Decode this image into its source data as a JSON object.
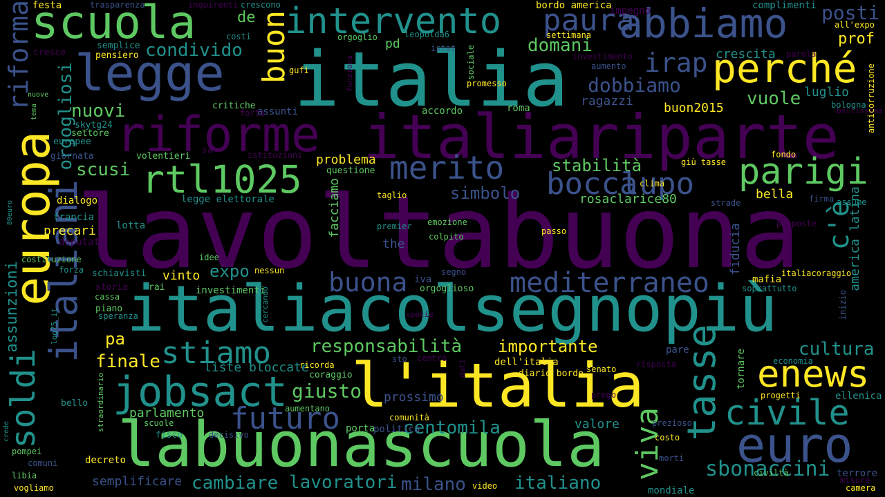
{
  "palette": {
    "background": "#000000",
    "colors": [
      "#440154",
      "#3b528b",
      "#21918c",
      "#5ec962",
      "#fde725"
    ]
  },
  "words": [
    "lavoltabuona",
    "italiacolsegnopiù",
    "italiariparte",
    "italia",
    "labuonascuola",
    "l'italia",
    "riforme",
    "legge",
    "europa",
    "scuola",
    "abbiamo",
    "perché",
    "intervento",
    "italiani",
    "euro",
    "merito",
    "jobsact",
    "rtl1025",
    "tasse",
    "parigi",
    "enews",
    "civile",
    "bocca",
    "lupo",
    "soldi",
    "futuro",
    "mediterraneo",
    "stiamo",
    "buon",
    "riforma",
    "buona",
    "responsabilità",
    "paura",
    "irap",
    "dobbiamo",
    "vuole",
    "posti",
    "c'è",
    "viva",
    "sbonaccini",
    "cultura",
    "centomila",
    "giusto",
    "orgogliosi",
    "condivido",
    "domani",
    "nuovi",
    "scusi",
    "stabilità",
    "simbolo",
    "importante",
    "finale",
    "pa",
    "expo",
    "cambiare",
    "lavoratori",
    "milano",
    "italiano",
    "assunzioni",
    "prof",
    "crescita",
    "luglio",
    "buon2015",
    "ragazzi",
    "problema",
    "rosaclarice80",
    "bella",
    "parlamento",
    "prossimo",
    "valore",
    "semplificare",
    "liste bloccate",
    "america latina",
    "fiducia",
    "facciamo",
    "the",
    "pd",
    "de",
    "decreto",
    "precari",
    "vinto",
    "dialogo",
    "francia",
    "lotta",
    "legge elettorale",
    "costi",
    "semplice",
    "pensiero",
    "cresce",
    "critiche",
    "assunti",
    "accordo",
    "roma",
    "nuove",
    "tema",
    "skytg24",
    "settore",
    "europee",
    "giornata",
    "volentieri",
    "sa",
    "istituzioni",
    "questione",
    "taglio",
    "premier",
    "colpito",
    "emozione",
    "passo",
    "idee",
    "nessun",
    "segno",
    "iva",
    "orgoglioso",
    "schiavisti",
    "storia",
    "rai",
    "cassa",
    "piano",
    "speranza",
    "investimenti",
    "cercando",
    "specie",
    "log75_it",
    "80euro",
    "deputati",
    "costituzione",
    "forza",
    "festa",
    "trasparenza",
    "inquirenti",
    "crescono",
    "complimenti",
    "bordo america",
    "impegno",
    "settimana",
    "orgoglio",
    "leopolda6",
    "istat",
    "sociale",
    "gufi",
    "funziona",
    "promesso",
    "investimento",
    "aumento",
    "forte",
    "all'expo",
    "parola",
    "bologna",
    "bellissima",
    "anticorruzione",
    "fondo",
    "giù tasse",
    "clima",
    "strade",
    "firma",
    "assume",
    "proposte",
    "mafia",
    "soprattutto",
    "italiacoraggio",
    "inizio",
    "tornare",
    "economia",
    "risposta",
    "senato",
    "pare",
    "dell'italia",
    "diario bordo",
    "dati",
    "centro",
    "sto",
    "coraggio",
    "ricorda",
    "straordinario",
    "aumentano",
    "scuole",
    "fisco",
    "decisivo",
    "porta",
    "politica",
    "comunità",
    "prezioso",
    "costo",
    "morti",
    "prego",
    "progetti",
    "ellenica",
    "terrore",
    "misure",
    "camera",
    "civiltà",
    "mondiale",
    "video",
    "bello",
    "crede",
    "pompei",
    "comuni",
    "libia",
    "vogliamo"
  ]
}
